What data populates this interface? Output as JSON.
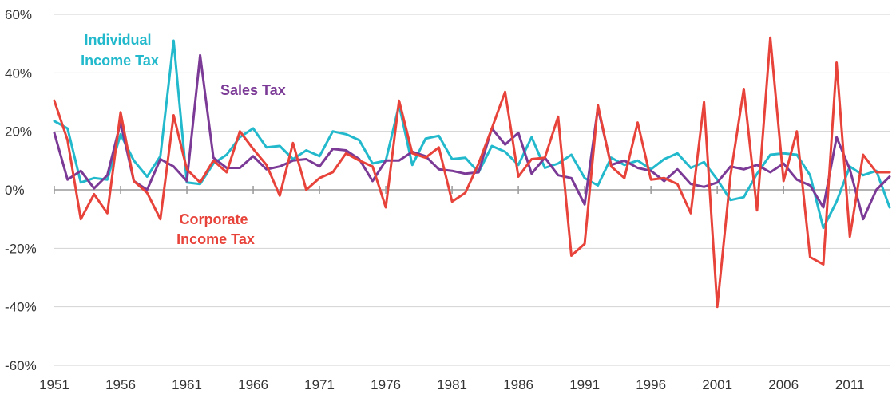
{
  "chart_data": {
    "type": "line",
    "title": "",
    "xlabel": "",
    "ylabel": "",
    "ylim": [
      -60,
      60
    ],
    "xlim": [
      1951,
      2014
    ],
    "y_ticks": [
      60,
      40,
      20,
      0,
      -20,
      -40,
      -60
    ],
    "y_tick_labels": [
      "60%",
      "40%",
      "20%",
      "0%",
      "-20%",
      "-40%",
      "-60%"
    ],
    "x_ticks": [
      1951,
      1956,
      1961,
      1966,
      1971,
      1976,
      1981,
      1986,
      1991,
      1996,
      2001,
      2006,
      2011
    ],
    "x_tick_labels": [
      "1951",
      "1956",
      "1961",
      "1966",
      "1971",
      "1976",
      "1981",
      "1986",
      "1991",
      "1996",
      "2001",
      "2006",
      "2011"
    ],
    "grid": "horizontal",
    "x": [
      1951,
      1952,
      1953,
      1954,
      1955,
      1956,
      1957,
      1958,
      1959,
      1960,
      1961,
      1962,
      1963,
      1964,
      1965,
      1966,
      1967,
      1968,
      1969,
      1970,
      1971,
      1972,
      1973,
      1974,
      1975,
      1976,
      1977,
      1978,
      1979,
      1980,
      1981,
      1982,
      1983,
      1984,
      1985,
      1986,
      1987,
      1988,
      1989,
      1990,
      1991,
      1992,
      1993,
      1994,
      1995,
      1996,
      1997,
      1998,
      1999,
      2000,
      2001,
      2002,
      2003,
      2004,
      2005,
      2006,
      2007,
      2008,
      2009,
      2010,
      2011,
      2012,
      2013,
      2014
    ],
    "series": [
      {
        "name": "Individual Income Tax",
        "label_lines": [
          "Individual",
          "Income Tax"
        ],
        "color": "#23b9cc",
        "values": [
          23.5,
          21,
          2.5,
          4,
          3.5,
          19,
          10,
          4.5,
          11.5,
          51,
          2.5,
          2,
          9,
          12,
          18,
          21,
          14.5,
          15,
          10.5,
          13.5,
          11.5,
          20,
          19,
          17,
          9,
          10,
          29,
          8.5,
          17.5,
          18.5,
          10.5,
          11,
          6,
          15,
          13,
          8.5,
          18,
          7.5,
          9,
          12,
          4,
          1.5,
          11,
          8.5,
          10,
          7,
          10.5,
          12.5,
          7.5,
          9.5,
          3.5,
          -3.5,
          -2.5,
          5.5,
          12,
          12.5,
          12,
          5,
          -13,
          -4,
          8,
          5,
          6.5,
          -6
        ]
      },
      {
        "name": "Sales Tax",
        "label_lines": [
          "Sales Tax"
        ],
        "color": "#7b3a96",
        "values": [
          19.5,
          3.5,
          6.5,
          0.5,
          5,
          23,
          3,
          0,
          10.5,
          8,
          3,
          46,
          11,
          7.5,
          7.5,
          11.5,
          7,
          8,
          10,
          10.5,
          8,
          14,
          13.5,
          10.5,
          3,
          10,
          10,
          13,
          11.5,
          7,
          6.5,
          5.5,
          6,
          21,
          15.5,
          19.5,
          5.5,
          11,
          5,
          4,
          -5,
          28,
          8.5,
          10,
          7.5,
          6.5,
          3,
          7,
          2,
          1,
          2.5,
          8,
          7,
          8.5,
          6,
          9,
          3.5,
          1.5,
          -6,
          18,
          7,
          -10,
          0,
          4.5
        ]
      },
      {
        "name": "Corporate Income Tax",
        "label_lines": [
          "Corporate",
          "Income Tax"
        ],
        "color": "#e8433a",
        "values": [
          30.5,
          17,
          -10,
          -1.5,
          -8,
          26.5,
          3,
          -1,
          -10,
          25.5,
          7,
          2.5,
          10,
          6,
          20,
          14,
          8.5,
          -2,
          16,
          0,
          4,
          6,
          12.5,
          10,
          8,
          -6,
          30.5,
          12.5,
          11,
          14.5,
          -4,
          -1,
          9,
          21,
          33.5,
          4.5,
          10.5,
          11,
          25,
          -22.5,
          -18.5,
          29,
          8,
          4,
          23,
          3.5,
          4,
          2,
          -8,
          30,
          -40,
          5,
          34.5,
          -7,
          52,
          3,
          20,
          -23,
          -25.5,
          43.5,
          -16,
          12,
          6,
          6
        ]
      }
    ]
  }
}
